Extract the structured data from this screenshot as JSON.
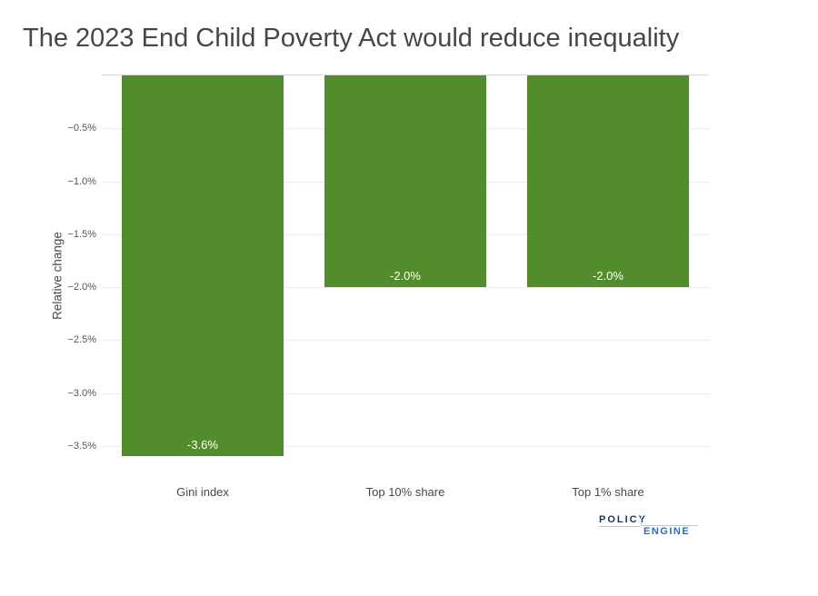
{
  "title": "The 2023 End Child Poverty Act would reduce inequality",
  "chart_data": {
    "type": "bar",
    "title": "The 2023 End Child Poverty Act would reduce inequality",
    "categories": [
      "Gini index",
      "Top 10% share",
      "Top 1% share"
    ],
    "values": [
      -3.6,
      -2.0,
      -2.0
    ],
    "bar_labels": [
      "-3.6%",
      "-2.0%",
      "-2.0%"
    ],
    "xlabel": "",
    "ylabel": "Relative change",
    "yticks": [
      "−0.5%",
      "−1.0%",
      "−1.5%",
      "−2.0%",
      "−2.5%",
      "−3.0%",
      "−3.5%"
    ],
    "ytick_values": [
      -0.5,
      -1.0,
      -1.5,
      -2.0,
      -2.5,
      -3.0,
      -3.5
    ],
    "ylim": [
      -3.65,
      0
    ],
    "grid": true,
    "legend": "none",
    "bar_color": "#538C2D",
    "bar_label_color": "#FFFFFF",
    "gridline_color": "#ECECEC",
    "zero_line_color": "#D8D8D8"
  },
  "logo": {
    "policy": "POLICY",
    "engine": "ENGINE",
    "policy_color": "#1B3356",
    "engine_color": "#2E6FAE",
    "rule_color": "#B5CBDD"
  }
}
